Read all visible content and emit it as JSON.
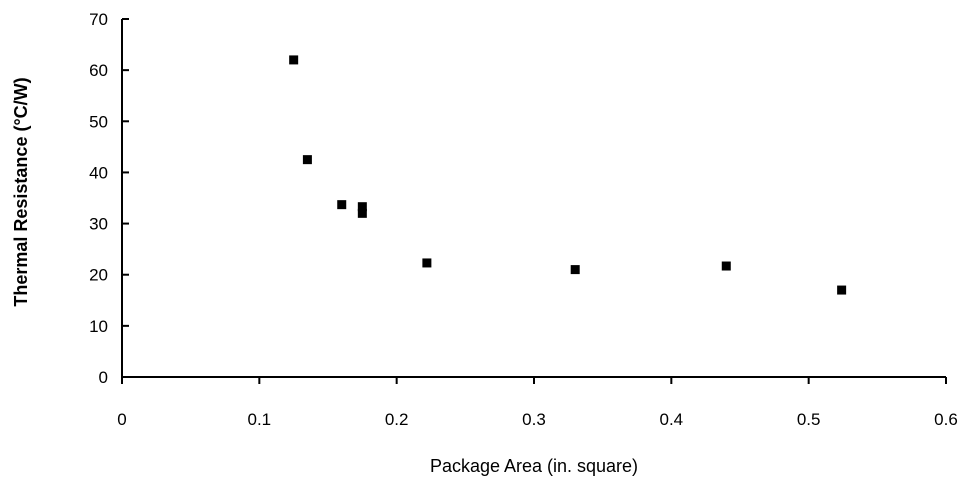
{
  "chart_data": {
    "type": "scatter",
    "title": "",
    "xlabel": "Package Area (in. square)",
    "ylabel": "Thermal Resistance (°C/W)",
    "xlim": [
      0,
      0.6
    ],
    "ylim": [
      0,
      70
    ],
    "x_ticks": [
      0,
      0.1,
      0.2,
      0.3,
      0.4,
      0.5,
      0.6
    ],
    "x_tick_labels": [
      "0",
      "0.1",
      "0.2",
      "0.3",
      "0.4",
      "0.5",
      "0.6"
    ],
    "y_ticks": [
      0,
      10,
      20,
      30,
      40,
      50,
      60,
      70
    ],
    "y_tick_labels": [
      "0",
      "10",
      "20",
      "30",
      "40",
      "50",
      "60",
      "70"
    ],
    "grid": false,
    "legend": "none",
    "marker": "square",
    "color": "#000000",
    "series": [
      {
        "x": [
          0.125,
          0.135,
          0.16,
          0.175,
          0.175,
          0.222,
          0.33,
          0.44,
          0.524
        ],
        "y": [
          62,
          42.5,
          33.7,
          33.3,
          32.0,
          22.3,
          21.0,
          21.7,
          17.0
        ]
      }
    ]
  }
}
